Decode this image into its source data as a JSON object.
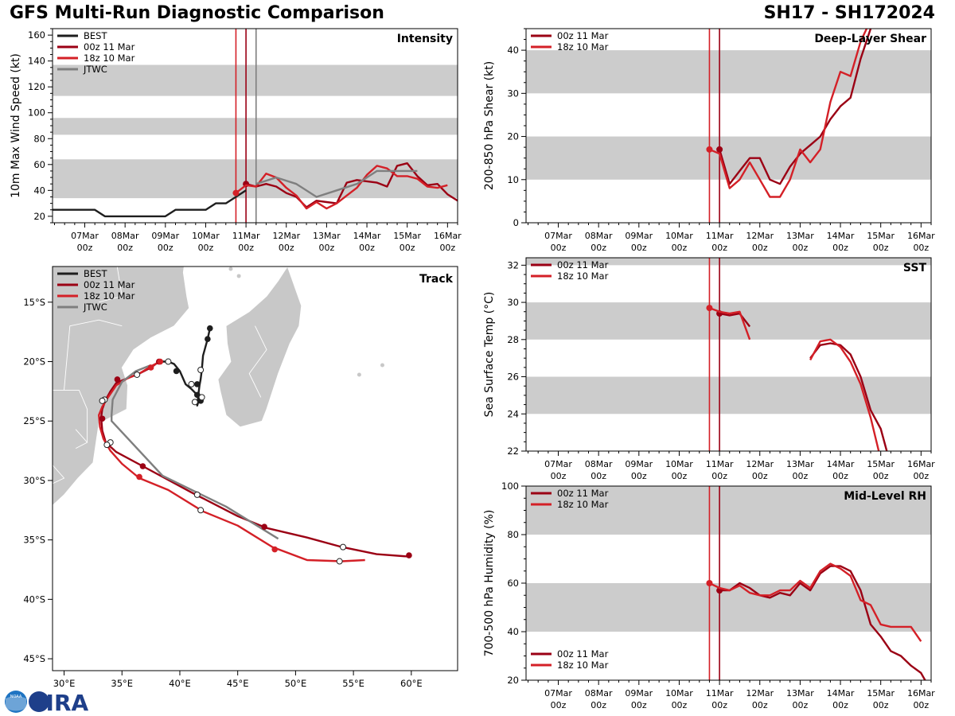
{
  "header": {
    "title": "GFS Multi-Run Diagnostic Comparison",
    "storm": "SH17 - SH172024"
  },
  "logos": {
    "left": "NOAA",
    "right": "CIRA"
  },
  "colors": {
    "best": "#1e1e1e",
    "run00": "#9b0014",
    "run18": "#d42027",
    "jtwc": "#7f7f7f",
    "band": "#cccccc"
  },
  "time_ticks": [
    {
      "d": 1,
      "label": "07Mar",
      "sub": "00z"
    },
    {
      "d": 2,
      "label": "08Mar",
      "sub": "00z"
    },
    {
      "d": 3,
      "label": "09Mar",
      "sub": "00z"
    },
    {
      "d": 4,
      "label": "10Mar",
      "sub": "00z"
    },
    {
      "d": 5,
      "label": "11Mar",
      "sub": "00z"
    },
    {
      "d": 6,
      "label": "12Mar",
      "sub": "00z"
    },
    {
      "d": 7,
      "label": "13Mar",
      "sub": "00z"
    },
    {
      "d": 8,
      "label": "14Mar",
      "sub": "00z"
    },
    {
      "d": 9,
      "label": "15Mar",
      "sub": "00z"
    },
    {
      "d": 10,
      "label": "16Mar",
      "sub": "00z"
    }
  ],
  "chart_data": [
    {
      "id": "intensity",
      "type": "line",
      "title": "Intensity",
      "ylabel": "10m Max Wind Speed (kt)",
      "x_units": "days since 06Mar 00z",
      "xlim": [
        0.2,
        10.25
      ],
      "ylim": [
        15,
        165
      ],
      "yticks": [
        20,
        40,
        60,
        80,
        100,
        120,
        140,
        160
      ],
      "bands": [
        [
          34,
          64
        ],
        [
          83,
          96
        ],
        [
          113,
          137
        ]
      ],
      "vlines": [
        {
          "x": 4.75,
          "series": "run18"
        },
        {
          "x": 5.0,
          "series": "run00"
        },
        {
          "x": 5.25,
          "series": "jtwc"
        }
      ],
      "legend": [
        "BEST",
        "00z 11 Mar",
        "18z 10 Mar",
        "JTWC"
      ],
      "series": [
        {
          "name": "BEST",
          "key": "best",
          "x": [
            0,
            0.25,
            0.5,
            0.75,
            1,
            1.25,
            1.5,
            1.75,
            2,
            2.25,
            2.5,
            2.75,
            3,
            3.25,
            3.5,
            3.75,
            4,
            4.25,
            4.5,
            4.75,
            5
          ],
          "y": [
            25,
            25,
            25,
            25,
            25,
            25,
            20,
            20,
            20,
            20,
            20,
            20,
            20,
            25,
            25,
            25,
            25,
            30,
            30,
            35,
            40
          ]
        },
        {
          "name": "00z 11 Mar",
          "key": "run00",
          "x": [
            5,
            5.25,
            5.5,
            5.75,
            6,
            6.25,
            6.5,
            6.75,
            7,
            7.25,
            7.5,
            7.75,
            8,
            8.25,
            8.5,
            8.75,
            9,
            9.25,
            9.5,
            9.75,
            10,
            10.25
          ],
          "y": [
            45,
            43,
            45,
            43,
            38,
            35,
            27,
            32,
            31,
            30,
            46,
            48,
            47,
            46,
            43,
            59,
            61,
            51,
            44,
            45,
            37,
            32
          ],
          "markers": [
            {
              "x": 5.0,
              "y": 45
            }
          ]
        },
        {
          "name": "18z 10 Mar",
          "key": "run18",
          "x": [
            4.75,
            5,
            5.25,
            5.5,
            5.75,
            6,
            6.25,
            6.5,
            6.75,
            7,
            7.25,
            7.5,
            7.75,
            8,
            8.25,
            8.5,
            8.75,
            9,
            9.25,
            9.5,
            9.75,
            10
          ],
          "y": [
            38,
            44,
            43,
            53,
            50,
            42,
            36,
            26,
            31,
            26,
            30,
            36,
            42,
            52,
            59,
            57,
            51,
            51,
            49,
            43,
            42,
            44
          ],
          "markers": [
            {
              "x": 4.75,
              "y": 38
            }
          ]
        },
        {
          "name": "JTWC",
          "key": "jtwc",
          "x": [
            5.25,
            5.75,
            6.25,
            6.75,
            7.25,
            7.75,
            8.25,
            8.75,
            9.25
          ],
          "y": [
            45,
            50,
            45,
            35,
            40,
            45,
            55,
            55,
            55
          ]
        }
      ]
    },
    {
      "id": "shear",
      "type": "line",
      "title": "Deep-Layer Shear",
      "ylabel": "200-850 hPa Shear (kt)",
      "x_units": "days since 06Mar 00z",
      "xlim": [
        0.2,
        10.25
      ],
      "ylim": [
        0,
        45
      ],
      "yticks": [
        0,
        10,
        20,
        30,
        40
      ],
      "bands": [
        [
          10,
          20
        ],
        [
          30,
          40
        ]
      ],
      "vlines": [
        {
          "x": 4.75,
          "series": "run18"
        },
        {
          "x": 5.0,
          "series": "run00"
        }
      ],
      "legend": [
        "00z 11 Mar",
        "18z 10 Mar"
      ],
      "series": [
        {
          "name": "00z 11 Mar",
          "key": "run00",
          "x": [
            5,
            5.25,
            5.5,
            5.75,
            6,
            6.25,
            6.5,
            6.75,
            7,
            7.25,
            7.5,
            7.75,
            8,
            8.25,
            8.5,
            8.75
          ],
          "y": [
            17,
            9,
            12,
            15,
            15,
            10,
            9,
            13,
            16,
            18,
            20,
            24,
            27,
            29,
            38,
            45
          ],
          "markers": [
            {
              "x": 5.0,
              "y": 17
            }
          ]
        },
        {
          "name": "18z 10 Mar",
          "key": "run18",
          "x": [
            4.75,
            5,
            5.25,
            5.5,
            5.75,
            6,
            6.25,
            6.5,
            6.75,
            7,
            7.25,
            7.5,
            7.75,
            8,
            8.25,
            8.5,
            8.75
          ],
          "y": [
            17,
            16,
            8,
            10,
            14,
            10,
            6,
            6,
            10,
            17,
            14,
            17,
            28,
            35,
            34,
            42,
            47
          ],
          "markers": [
            {
              "x": 4.75,
              "y": 17
            }
          ]
        }
      ]
    },
    {
      "id": "sst",
      "type": "line",
      "title": "SST",
      "ylabel": "Sea Surface Temp (°C)",
      "x_units": "days since 06Mar 00z",
      "xlim": [
        0.2,
        10.25
      ],
      "ylim": [
        22,
        32.4
      ],
      "yticks": [
        22,
        24,
        26,
        28,
        30,
        32
      ],
      "bands": [
        [
          24,
          26
        ],
        [
          28,
          30
        ],
        [
          32,
          33
        ]
      ],
      "vlines": [
        {
          "x": 4.75,
          "series": "run18"
        },
        {
          "x": 5.0,
          "series": "run00"
        }
      ],
      "legend": [
        "00z 11 Mar",
        "18z 10 Mar"
      ],
      "series": [
        {
          "name": "00z 11 Mar",
          "key": "run00",
          "segments": [
            {
              "x": [
                5,
                5.25,
                5.5,
                5.75
              ],
              "y": [
                29.4,
                29.3,
                29.4,
                28.7
              ]
            },
            {
              "x": [
                7.25,
                7.5,
                7.75,
                8,
                8.25,
                8.5,
                8.75,
                9,
                9.15
              ],
              "y": [
                27.0,
                27.7,
                27.8,
                27.7,
                27.2,
                26.0,
                24.2,
                23.2,
                22
              ]
            }
          ],
          "markers": [
            {
              "x": 5.0,
              "y": 29.4
            }
          ]
        },
        {
          "name": "18z 10 Mar",
          "key": "run18",
          "segments": [
            {
              "x": [
                4.75,
                5,
                5.25,
                5.5,
                5.75
              ],
              "y": [
                29.7,
                29.5,
                29.4,
                29.5,
                28.0
              ]
            },
            {
              "x": [
                7.25,
                7.5,
                7.75,
                8,
                8.25,
                8.5,
                8.75,
                8.95
              ],
              "y": [
                26.9,
                27.9,
                28.0,
                27.6,
                26.8,
                25.6,
                23.8,
                22
              ]
            }
          ],
          "markers": [
            {
              "x": 4.75,
              "y": 29.7
            }
          ]
        }
      ]
    },
    {
      "id": "rh",
      "type": "line",
      "title": "Mid-Level RH",
      "ylabel": "700-500 hPa Humidity (%)",
      "x_units": "days since 06Mar 00z",
      "xlim": [
        0.2,
        10.25
      ],
      "ylim": [
        20,
        100
      ],
      "yticks": [
        20,
        40,
        60,
        80,
        100
      ],
      "bands": [
        [
          40,
          60
        ],
        [
          80,
          100
        ]
      ],
      "vlines": [
        {
          "x": 4.75,
          "series": "run18"
        },
        {
          "x": 5.0,
          "series": "run00"
        }
      ],
      "legend": [
        "00z 11 Mar",
        "18z 10 Mar"
      ],
      "series": [
        {
          "name": "00z 11 Mar",
          "key": "run00",
          "x": [
            5,
            5.25,
            5.5,
            5.75,
            6,
            6.25,
            6.5,
            6.75,
            7,
            7.25,
            7.5,
            7.75,
            8,
            8.25,
            8.5,
            8.75,
            9,
            9.25,
            9.5,
            9.75,
            10,
            10.1
          ],
          "y": [
            57,
            57,
            60,
            58,
            55,
            54,
            56,
            55,
            60,
            57,
            64,
            67,
            67,
            65,
            57,
            43,
            38,
            32,
            30,
            26,
            23,
            20
          ],
          "markers": [
            {
              "x": 5.0,
              "y": 57
            }
          ]
        },
        {
          "name": "18z 10 Mar",
          "key": "run18",
          "x": [
            4.75,
            5,
            5.25,
            5.5,
            5.75,
            6,
            6.25,
            6.5,
            6.75,
            7,
            7.25,
            7.5,
            7.75,
            8,
            8.25,
            8.5,
            8.75,
            9,
            9.25,
            9.5,
            9.75,
            10
          ],
          "y": [
            60,
            58,
            57,
            59,
            56,
            55,
            55,
            57,
            57,
            61,
            58,
            65,
            68,
            66,
            63,
            53,
            51,
            43,
            42,
            42,
            42,
            36
          ],
          "markers": [
            {
              "x": 4.75,
              "y": 60
            }
          ]
        }
      ]
    },
    {
      "id": "track",
      "type": "map",
      "title": "Track",
      "xlim": [
        29,
        64
      ],
      "ylim": [
        -46,
        -12
      ],
      "xticks": [
        30,
        35,
        40,
        45,
        50,
        55,
        60
      ],
      "yticks": [
        -15,
        -20,
        -25,
        -30,
        -35,
        -40,
        -45
      ],
      "xticklabels": [
        "30°E",
        "35°E",
        "40°E",
        "45°E",
        "50°E",
        "55°E",
        "60°E"
      ],
      "yticklabels": [
        "15°S",
        "20°S",
        "25°S",
        "30°S",
        "35°S",
        "40°S",
        "45°S"
      ],
      "legend": [
        "BEST",
        "00z 11 Mar",
        "18z 10 Mar",
        "JTWC"
      ],
      "series": [
        {
          "name": "BEST",
          "key": "best",
          "lon": [
            42.6,
            42.4,
            42.0,
            41.9,
            41.8,
            41.7,
            41.6,
            41.5,
            41.6,
            41.7,
            41.8,
            41.5,
            41.0,
            40.5,
            40.0,
            39.5,
            39.0,
            38.5,
            38.2
          ],
          "lat": [
            -17.2,
            -18.1,
            -19.5,
            -20.7,
            -21.5,
            -22.0,
            -22.8,
            -23.7,
            -23.4,
            -23.0,
            -23.2,
            -22.8,
            -22.3,
            -21.9,
            -20.8,
            -20.2,
            -20.0,
            -20.0,
            -20.0
          ],
          "filled": [
            [
              42.6,
              -17.2
            ],
            [
              42.4,
              -18.1
            ],
            [
              41.5,
              -21.9
            ],
            [
              41.5,
              -22.8
            ],
            [
              41.8,
              -23.3
            ],
            [
              39.7,
              -20.8
            ]
          ],
          "hollow": [
            [
              41.8,
              -20.7
            ],
            [
              41.0,
              -21.9
            ],
            [
              41.3,
              -23.4
            ],
            [
              41.9,
              -23.0
            ],
            [
              39.0,
              -20.0
            ]
          ]
        },
        {
          "name": "00z 11 Mar",
          "key": "run00",
          "lon": [
            38.2,
            37.5,
            36.5,
            35.5,
            34.5,
            34.0,
            33.6,
            33.3,
            33.2,
            33.3,
            33.6,
            34.5,
            36.8,
            41.0,
            45.0,
            47.5,
            51.0,
            54.0,
            57.0,
            59.8
          ],
          "lat": [
            -20.0,
            -20.5,
            -21.0,
            -21.4,
            -21.8,
            -22.5,
            -23.2,
            -24.0,
            -24.7,
            -25.8,
            -26.8,
            -27.6,
            -28.8,
            -31.0,
            -33.0,
            -34.0,
            -34.8,
            -35.6,
            -36.2,
            -36.4
          ],
          "filled": [
            [
              38.2,
              -20.0
            ],
            [
              34.6,
              -21.5
            ],
            [
              33.3,
              -24.8
            ],
            [
              36.8,
              -28.8
            ],
            [
              47.3,
              -33.9
            ],
            [
              59.8,
              -36.3
            ]
          ],
          "hollow": [
            [
              36.3,
              -21.1
            ],
            [
              33.5,
              -23.2
            ],
            [
              34.0,
              -26.8
            ],
            [
              41.5,
              -31.2
            ],
            [
              54.1,
              -35.6
            ]
          ]
        },
        {
          "name": "18z 10 Mar",
          "key": "run18",
          "lon": [
            38.3,
            37.5,
            36.5,
            35.5,
            34.5,
            33.8,
            33.3,
            33.0,
            33.1,
            33.4,
            34.0,
            35.0,
            36.5,
            39.0,
            42.0,
            45.0,
            48.0,
            51.0,
            54.0,
            56.0
          ],
          "lat": [
            -20.0,
            -20.4,
            -21.0,
            -21.4,
            -22.0,
            -23.0,
            -23.8,
            -24.5,
            -25.5,
            -26.5,
            -27.5,
            -28.6,
            -29.8,
            -30.8,
            -32.6,
            -33.8,
            -35.6,
            -36.7,
            -36.8,
            -36.7
          ],
          "filled": [
            [
              38.3,
              -20.0
            ],
            [
              37.5,
              -20.5
            ],
            [
              36.5,
              -29.7
            ],
            [
              48.2,
              -35.8
            ]
          ],
          "hollow": [
            [
              33.3,
              -23.3
            ],
            [
              33.7,
              -27.0
            ],
            [
              41.8,
              -32.5
            ],
            [
              53.8,
              -36.8
            ]
          ]
        },
        {
          "name": "JTWC",
          "key": "jtwc",
          "lon": [
            37.5,
            36.2,
            35.0,
            34.2,
            34.1,
            34.1,
            38.5,
            44.0,
            48.5
          ],
          "lat": [
            -20.3,
            -20.8,
            -21.7,
            -23.2,
            -24.5,
            -25.0,
            -29.6,
            -32.2,
            -34.9
          ]
        }
      ]
    }
  ]
}
